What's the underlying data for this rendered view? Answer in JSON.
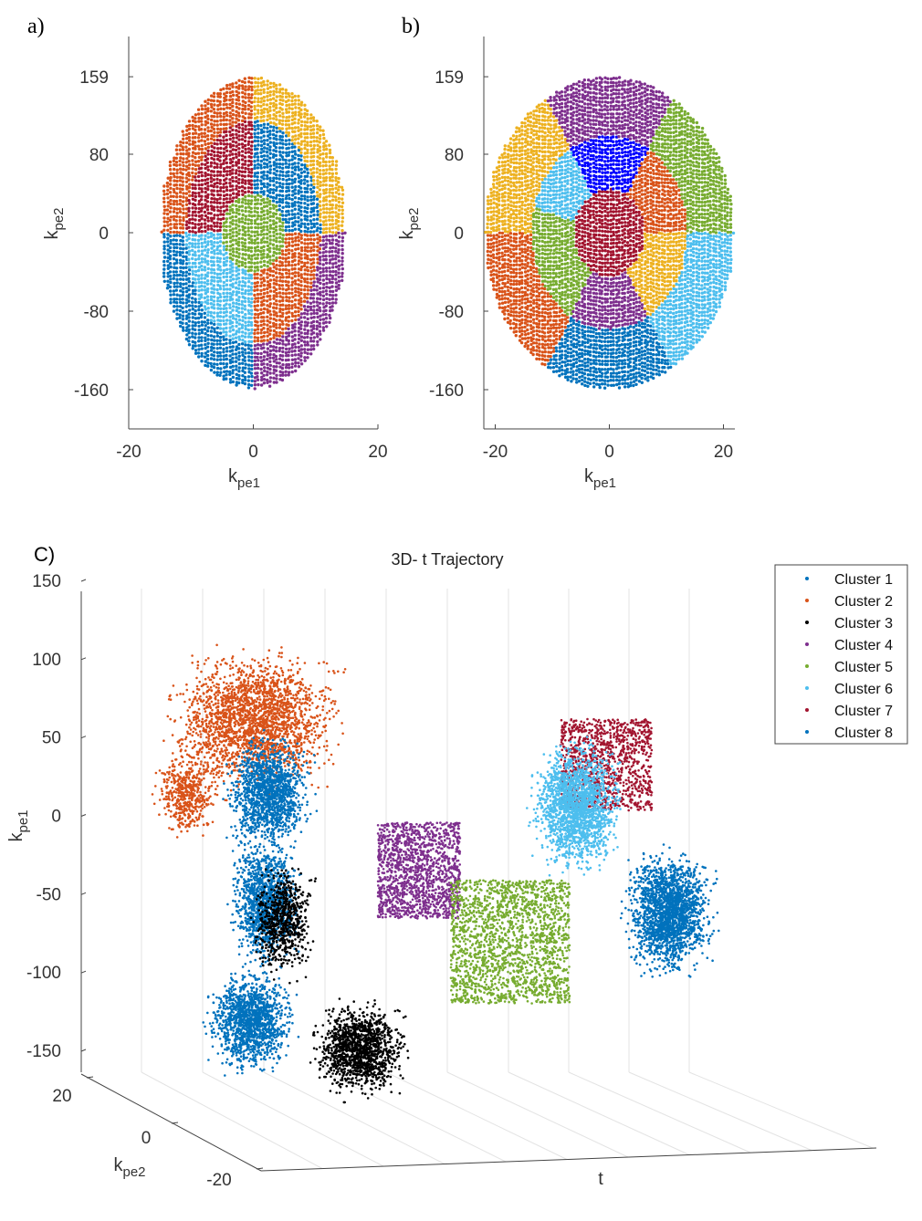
{
  "panels": {
    "a": {
      "label": "a)"
    },
    "b": {
      "label": "b)"
    },
    "c": {
      "label": "C)"
    }
  },
  "chart_data": [
    {
      "id": "a",
      "type": "scatter",
      "title": "",
      "xlabel_main": "k",
      "xlabel_sub": "pe1",
      "ylabel_main": "k",
      "ylabel_sub": "pe2",
      "xlim": [
        -20,
        20
      ],
      "ylim": [
        -200,
        200
      ],
      "xticks": [
        "-20",
        "0",
        "20"
      ],
      "xtick_values": [
        -20,
        0,
        20
      ],
      "yticks": [
        "159",
        "80",
        "0",
        "-80",
        "-160"
      ],
      "ytick_values": [
        159,
        80,
        0,
        -80,
        -160
      ],
      "ellipse": {
        "rx": 15,
        "ry": 159
      },
      "regions": [
        {
          "name": "inner-center",
          "color": "#77AC30",
          "rule": "ellipse",
          "rx": 5,
          "ry": 40
        },
        {
          "name": "top-left-inner",
          "color": "#A2142F",
          "rule": "ring-quadrant",
          "quadrant": "top-left",
          "ring": "inner"
        },
        {
          "name": "top-right-inner",
          "color": "#0072BD",
          "rule": "ring-quadrant",
          "quadrant": "top-right",
          "ring": "inner"
        },
        {
          "name": "bottom-left-inner",
          "color": "#4DBEEE",
          "rule": "ring-quadrant",
          "quadrant": "bottom-left",
          "ring": "inner"
        },
        {
          "name": "bottom-right-inner",
          "color": "#D95319",
          "rule": "ring-quadrant",
          "quadrant": "bottom-right",
          "ring": "inner"
        },
        {
          "name": "top-left-outer",
          "color": "#D95319",
          "rule": "ring-quadrant",
          "quadrant": "top-left",
          "ring": "outer"
        },
        {
          "name": "top-right-outer",
          "color": "#EDB120",
          "rule": "ring-quadrant",
          "quadrant": "top-right",
          "ring": "outer"
        },
        {
          "name": "bottom-left-outer",
          "color": "#0072BD",
          "rule": "ring-quadrant",
          "quadrant": "bottom-left",
          "ring": "outer"
        },
        {
          "name": "bottom-right-outer",
          "color": "#7E2F8E",
          "rule": "ring-quadrant",
          "quadrant": "bottom-right",
          "ring": "outer"
        }
      ],
      "inner_ring_scale": 0.72
    },
    {
      "id": "b",
      "type": "scatter",
      "title": "",
      "xlabel_main": "k",
      "xlabel_sub": "pe1",
      "ylabel_main": "k",
      "ylabel_sub": "pe2",
      "xlim": [
        -22,
        22
      ],
      "ylim": [
        -200,
        200
      ],
      "xticks": [
        "-20",
        "0",
        "20"
      ],
      "xtick_values": [
        -20,
        0,
        20
      ],
      "yticks": [
        "159",
        "80",
        "0",
        "-80",
        "-160"
      ],
      "ytick_values": [
        159,
        80,
        0,
        -80,
        -160
      ],
      "ellipse": {
        "rx": 22,
        "ry": 159
      },
      "regions": [
        {
          "name": "center",
          "color": "#A2142F"
        },
        {
          "name": "top-center",
          "color": "#0000FF"
        },
        {
          "name": "top-outer",
          "color": "#7E2F8E"
        },
        {
          "name": "upper-left-inner",
          "color": "#4DBEEE"
        },
        {
          "name": "upper-left-outer",
          "color": "#EDB120"
        },
        {
          "name": "upper-right-inner",
          "color": "#D95319"
        },
        {
          "name": "upper-right-outer",
          "color": "#77AC30"
        },
        {
          "name": "lower-left-inner",
          "color": "#77AC30"
        },
        {
          "name": "lower-left-outer",
          "color": "#D95319"
        },
        {
          "name": "lower-right-inner",
          "color": "#EDB120"
        },
        {
          "name": "lower-right-outer",
          "color": "#4DBEEE"
        },
        {
          "name": "bottom-center",
          "color": "#7E2F8E"
        },
        {
          "name": "bottom-outer",
          "color": "#0072BD"
        }
      ]
    },
    {
      "id": "c",
      "type": "scatter3d",
      "title": "3D- t Trajectory",
      "xlabel": "t",
      "ylabel_main": "k",
      "ylabel_sub": "pe2",
      "zlabel_main": "k",
      "zlabel_sub": "pe1",
      "zlim": [
        -150,
        150
      ],
      "zticks": [
        "150",
        "100",
        "50",
        "0",
        "-50",
        "-100",
        "-150"
      ],
      "ztick_values": [
        150,
        100,
        50,
        0,
        -50,
        -100,
        -150
      ],
      "yticks": [
        "20",
        "0",
        "-20"
      ],
      "ytick_values": [
        20,
        0,
        -20
      ],
      "legend_position": "top-right",
      "series": [
        {
          "name": "Cluster 1",
          "color": "#0072BD"
        },
        {
          "name": "Cluster 2",
          "color": "#D95319"
        },
        {
          "name": "Cluster 3",
          "color": "#000000"
        },
        {
          "name": "Cluster 4",
          "color": "#7E2F8E"
        },
        {
          "name": "Cluster 5",
          "color": "#77AC30"
        },
        {
          "name": "Cluster 6",
          "color": "#4DBEEE"
        },
        {
          "name": "Cluster 7",
          "color": "#A2142F"
        },
        {
          "name": "Cluster 8",
          "color": "#0072BD"
        }
      ]
    }
  ]
}
